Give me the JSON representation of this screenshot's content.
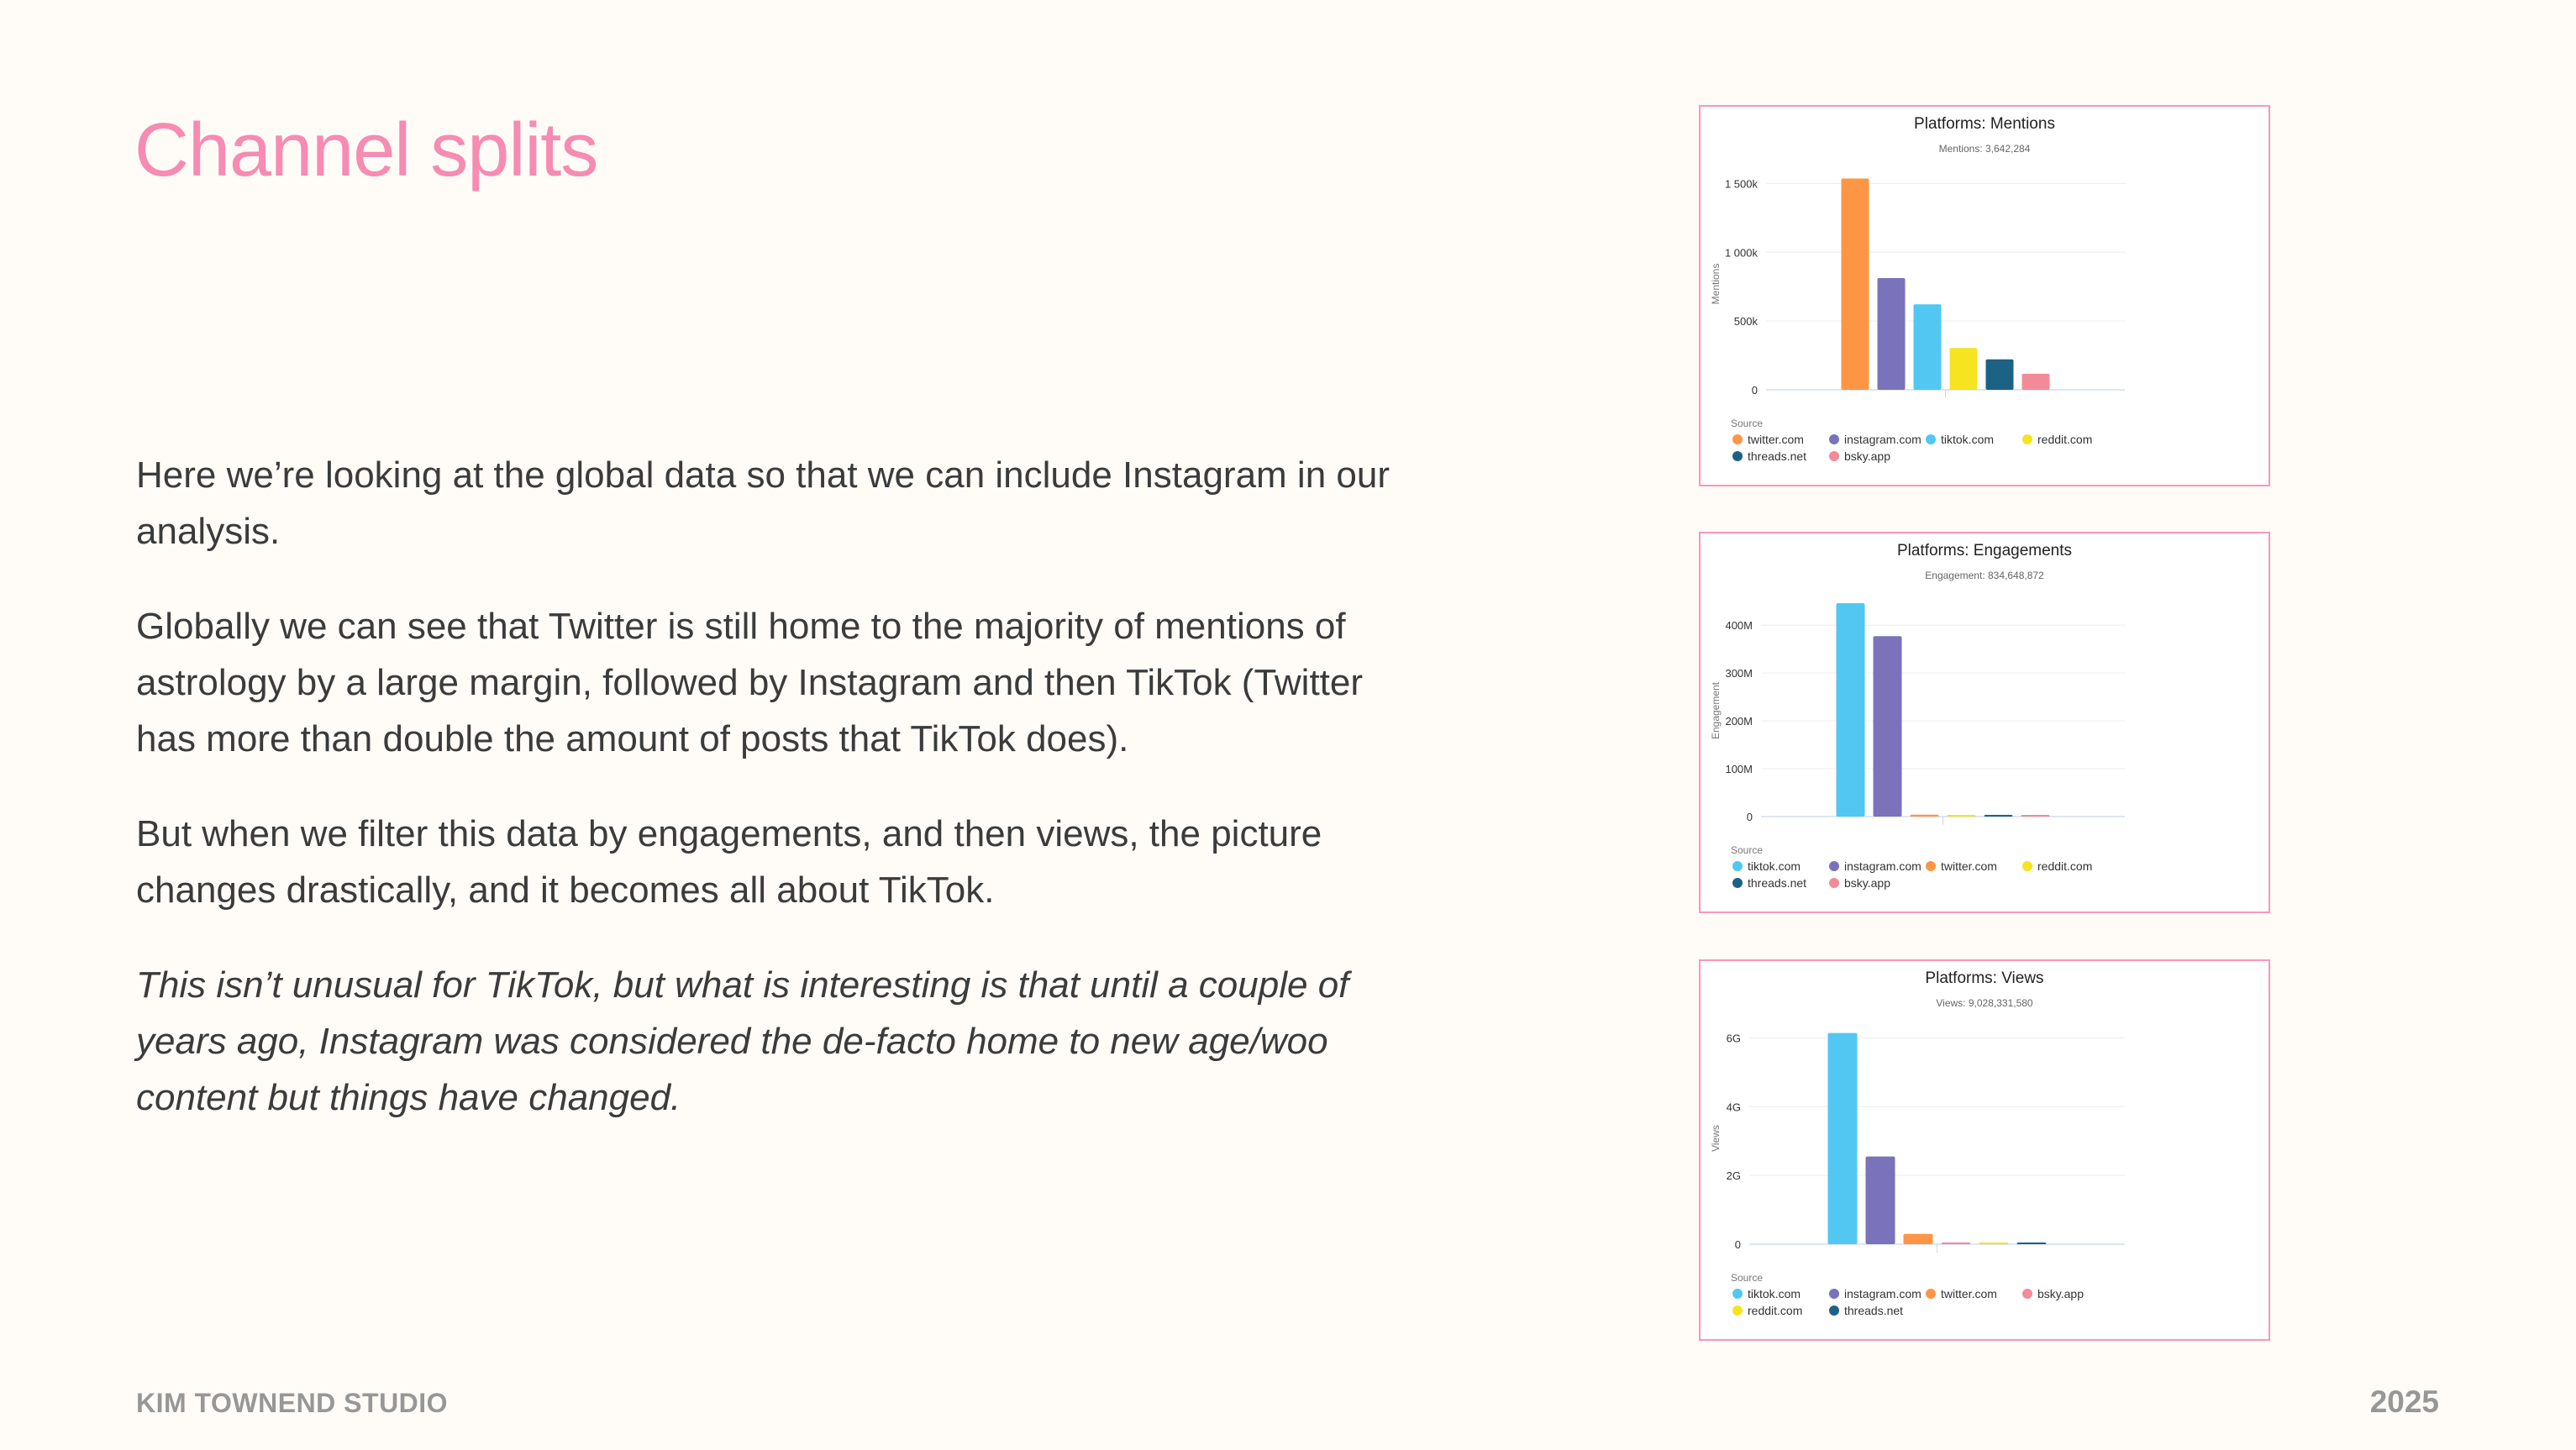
{
  "page": {
    "title": "Channel splits",
    "paragraphs": [
      "Here we’re looking at the global data so that we can include Instagram in our analysis.",
      "Globally we can see that Twitter is still home to the majority of mentions of astrology by a large margin, followed by Instagram and then TikTok (Twitter has more than double the amount of posts that TikTok does).",
      "But when we filter this data by engagements, and then views, the picture changes drastically, and it becomes all about TikTok.",
      "This isn’t unusual for TikTok, but what is interesting is that until a couple of years ago, Instagram was considered the de-facto home to new age/woo content but things have changed."
    ],
    "footer_left": "KIM TOWNEND STUDIO",
    "footer_right": "2025"
  },
  "colors": {
    "title": "#f78bb1",
    "border": "#f797bb",
    "twitter.com": "#fd9644",
    "instagram.com": "#7a72ba",
    "tiktok.com": "#52c7f2",
    "reddit.com": "#f5e41f",
    "threads.net": "#1c6285",
    "bsky.app": "#f38a98"
  },
  "chart_data": [
    {
      "type": "bar",
      "title": "Platforms: Mentions",
      "subtitle": "Mentions: 3,642,284",
      "ylabel": "Mentions",
      "legend_title": "Source",
      "legend_position": "bottom",
      "grid": true,
      "ylim": [
        0,
        1600000
      ],
      "yticks": [
        0,
        500000,
        1000000,
        1500000
      ],
      "ytick_labels": [
        "0",
        "500k",
        "1 000k",
        "1 500k"
      ],
      "series": [
        {
          "name": "twitter.com",
          "value": 1536000
        },
        {
          "name": "instagram.com",
          "value": 812000
        },
        {
          "name": "tiktok.com",
          "value": 621000
        },
        {
          "name": "reddit.com",
          "value": 304000
        },
        {
          "name": "threads.net",
          "value": 221000
        },
        {
          "name": "bsky.app",
          "value": 117000
        }
      ]
    },
    {
      "type": "bar",
      "title": "Platforms: Engagements",
      "subtitle": "Engagement: 834,648,872",
      "ylabel": "Engagement",
      "legend_title": "Source",
      "legend_position": "bottom",
      "grid": true,
      "ylim": [
        0,
        460000000
      ],
      "yticks": [
        0,
        100000000,
        200000000,
        300000000,
        400000000
      ],
      "ytick_labels": [
        "0",
        "100M",
        "200M",
        "300M",
        "400M"
      ],
      "series": [
        {
          "name": "tiktok.com",
          "value": 446000000
        },
        {
          "name": "instagram.com",
          "value": 377000000
        },
        {
          "name": "twitter.com",
          "value": 4000000
        },
        {
          "name": "reddit.com",
          "value": 3000000
        },
        {
          "name": "threads.net",
          "value": 3000000
        },
        {
          "name": "bsky.app",
          "value": 2000000
        }
      ]
    },
    {
      "type": "bar",
      "title": "Platforms: Views",
      "subtitle": "Views: 9,028,331,580",
      "ylabel": "Views",
      "legend_title": "Source",
      "legend_position": "bottom",
      "grid": true,
      "ylim": [
        0,
        6400000000
      ],
      "yticks": [
        0,
        2000000000,
        4000000000,
        6000000000
      ],
      "ytick_labels": [
        "0",
        "2G",
        "4G",
        "6G"
      ],
      "series": [
        {
          "name": "tiktok.com",
          "value": 6140000000
        },
        {
          "name": "instagram.com",
          "value": 2550000000
        },
        {
          "name": "twitter.com",
          "value": 300000000
        },
        {
          "name": "bsky.app",
          "value": 10000000
        },
        {
          "name": "reddit.com",
          "value": 10000000
        },
        {
          "name": "threads.net",
          "value": 10000000
        }
      ]
    }
  ]
}
